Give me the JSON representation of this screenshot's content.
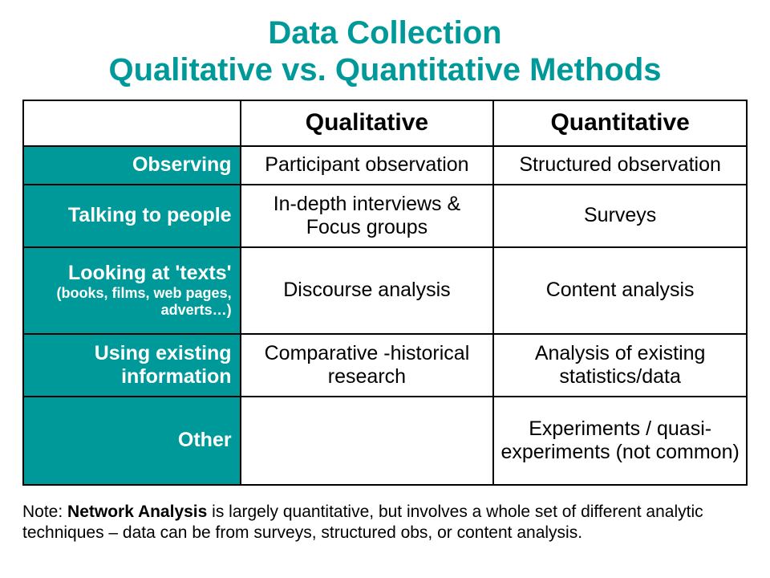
{
  "colors": {
    "title": "#009999",
    "row_header_bg": "#009999",
    "row_header_text": "#ffffff",
    "border": "#000000",
    "background": "#ffffff",
    "body_text": "#000000"
  },
  "title_line1": "Data Collection",
  "title_line2": "Qualitative vs. Quantitative Methods",
  "table": {
    "columns": [
      "",
      "Qualitative",
      "Quantitative"
    ],
    "rows": [
      {
        "header": "Observing",
        "header_sub": "",
        "qual": "Participant observation",
        "quant": "Structured observation"
      },
      {
        "header": "Talking to people",
        "header_sub": "",
        "qual": "In-depth interviews & Focus groups",
        "quant": "Surveys"
      },
      {
        "header": "Looking at 'texts'",
        "header_sub": "(books, films, web pages, adverts…)",
        "qual": "Discourse analysis",
        "quant": "Content analysis"
      },
      {
        "header": "Using existing information",
        "header_sub": "",
        "qual": "Comparative -historical research",
        "quant": "Analysis of existing statistics/data"
      },
      {
        "header": "Other",
        "header_sub": "",
        "qual": "",
        "quant": "Experiments / quasi-experiments (not common)"
      }
    ]
  },
  "note_lead": "Network Analysis",
  "note_prefix": "Note: ",
  "note_rest": " is largely quantitative, but involves a whole set of different analytic techniques – data can be from surveys, structured obs, or content analysis."
}
